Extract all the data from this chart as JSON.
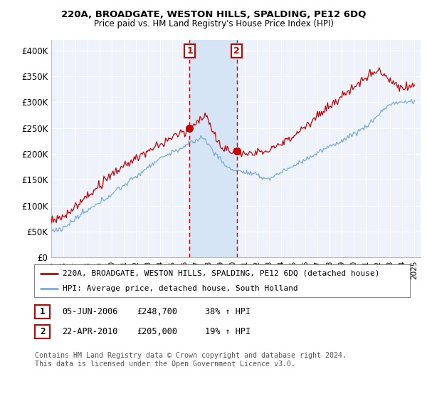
{
  "title": "220A, BROADGATE, WESTON HILLS, SPALDING, PE12 6DQ",
  "subtitle": "Price paid vs. HM Land Registry's House Price Index (HPI)",
  "ylabel_ticks": [
    "£0",
    "£50K",
    "£100K",
    "£150K",
    "£200K",
    "£250K",
    "£300K",
    "£350K",
    "£400K"
  ],
  "ytick_values": [
    0,
    50000,
    100000,
    150000,
    200000,
    250000,
    300000,
    350000,
    400000
  ],
  "ylim": [
    0,
    420000
  ],
  "xlim_start": 1995.0,
  "xlim_end": 2025.5,
  "red_line_color": "#cc0000",
  "blue_line_color": "#7aabdb",
  "marker1_x": 2006.43,
  "marker1_y": 248700,
  "marker2_x": 2010.31,
  "marker2_y": 205000,
  "annotation1_label": "1",
  "annotation2_label": "2",
  "vline1_x": 2006.43,
  "vline2_x": 2010.31,
  "legend_line1": "220A, BROADGATE, WESTON HILLS, SPALDING, PE12 6DQ (detached house)",
  "legend_line2": "HPI: Average price, detached house, South Holland",
  "table_row1": [
    "1",
    "05-JUN-2006",
    "£248,700",
    "38% ↑ HPI"
  ],
  "table_row2": [
    "2",
    "22-APR-2010",
    "£205,000",
    "19% ↑ HPI"
  ],
  "footnote": "Contains HM Land Registry data © Crown copyright and database right 2024.\nThis data is licensed under the Open Government Licence v3.0.",
  "background_color": "#ffffff",
  "plot_bg_color": "#eef2fb",
  "shade_color": "#d5e5f5",
  "grid_color": "#ffffff"
}
